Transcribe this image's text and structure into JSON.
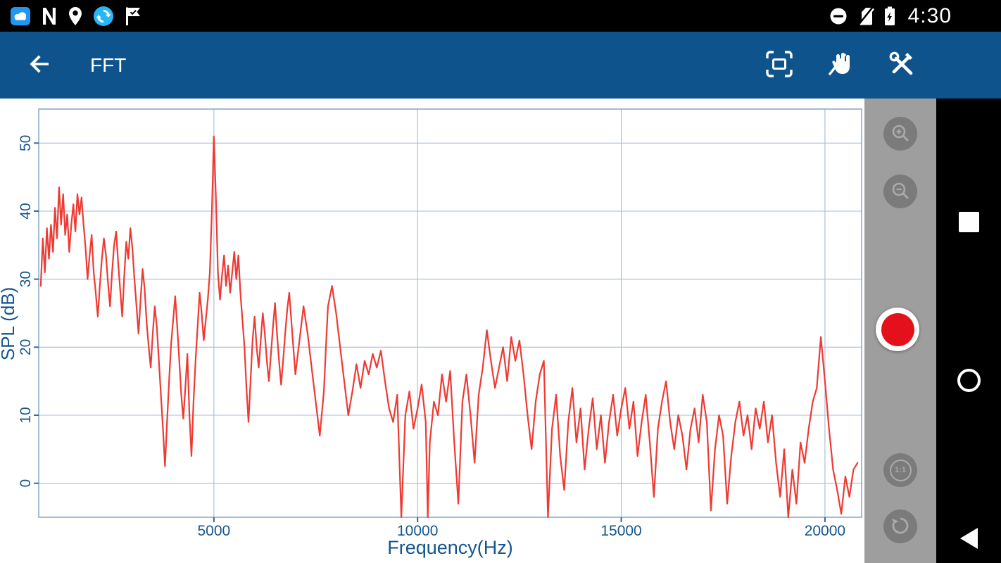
{
  "status_bar": {
    "time": "4:30",
    "left_icons": [
      "cloud-storage-app-icon",
      "n-app-icon",
      "location-pin-icon",
      "sync-app-icon",
      "check-flag-icon"
    ],
    "right_icons": [
      "do-not-disturb-icon",
      "no-sim-icon",
      "battery-charging-icon"
    ]
  },
  "toolbar": {
    "title": "FFT",
    "back_icon": "back-arrow-icon",
    "actions": [
      {
        "name": "fit-screen-button",
        "icon": "fit-screen-icon"
      },
      {
        "name": "pan-tool-button",
        "icon": "pan-hand-slash-icon"
      },
      {
        "name": "tools-button",
        "icon": "wrench-screwdriver-icon"
      }
    ],
    "bg_color": "#0e538c"
  },
  "side_toolbar": {
    "bg_color": "#9e9e9e",
    "button_bg_color": "#7b7b7b",
    "one_to_one_label": "1:1",
    "buttons": [
      "zoom-in-icon",
      "zoom-out-icon",
      "one-to-one-icon",
      "reset-zoom-icon"
    ],
    "record_button_color": "#e4101c"
  },
  "nav_bar": {
    "icons": [
      "recents-square-icon",
      "home-circle-icon",
      "back-triangle-icon"
    ]
  },
  "chart_data": {
    "type": "line",
    "title": "",
    "xlabel": "Frequency(Hz)",
    "ylabel": "SPL (dB)",
    "xlim": [
      700,
      20900
    ],
    "ylim": [
      -5,
      55
    ],
    "x_ticks": [
      5000,
      10000,
      15000,
      20000
    ],
    "y_ticks": [
      0,
      10,
      20,
      30,
      40,
      50
    ],
    "grid": true,
    "legend": false,
    "grid_color": "#a3bdd3",
    "frame_color": "#7aa0bf",
    "tick_color": "#35689a",
    "text_color": "#15568e",
    "line_color": "#ee3a33",
    "points": [
      [
        750,
        29
      ],
      [
        800,
        36
      ],
      [
        850,
        31
      ],
      [
        900,
        37.5
      ],
      [
        950,
        33
      ],
      [
        1000,
        38
      ],
      [
        1050,
        34
      ],
      [
        1100,
        40.5
      ],
      [
        1150,
        36
      ],
      [
        1200,
        43.5
      ],
      [
        1250,
        38
      ],
      [
        1300,
        42.5
      ],
      [
        1350,
        36.5
      ],
      [
        1400,
        39.5
      ],
      [
        1450,
        34
      ],
      [
        1500,
        38
      ],
      [
        1550,
        41
      ],
      [
        1600,
        37
      ],
      [
        1650,
        42.5
      ],
      [
        1700,
        39.5
      ],
      [
        1750,
        42
      ],
      [
        1800,
        38
      ],
      [
        1850,
        34.5
      ],
      [
        1900,
        30
      ],
      [
        1950,
        33.5
      ],
      [
        2000,
        36.5
      ],
      [
        2050,
        31
      ],
      [
        2100,
        28
      ],
      [
        2150,
        24.5
      ],
      [
        2200,
        29
      ],
      [
        2250,
        33
      ],
      [
        2300,
        36
      ],
      [
        2350,
        33.5
      ],
      [
        2400,
        29.5
      ],
      [
        2450,
        26
      ],
      [
        2500,
        31
      ],
      [
        2550,
        35
      ],
      [
        2600,
        37
      ],
      [
        2650,
        32.5
      ],
      [
        2700,
        28.5
      ],
      [
        2750,
        24.5
      ],
      [
        2800,
        30.5
      ],
      [
        2850,
        35.5
      ],
      [
        2900,
        33
      ],
      [
        2950,
        37.5
      ],
      [
        3000,
        34.5
      ],
      [
        3050,
        30
      ],
      [
        3100,
        26
      ],
      [
        3150,
        22
      ],
      [
        3200,
        27
      ],
      [
        3250,
        31.5
      ],
      [
        3300,
        28.5
      ],
      [
        3350,
        23.5
      ],
      [
        3400,
        20
      ],
      [
        3450,
        17
      ],
      [
        3500,
        22
      ],
      [
        3550,
        26
      ],
      [
        3600,
        23
      ],
      [
        3650,
        18
      ],
      [
        3700,
        13
      ],
      [
        3750,
        8
      ],
      [
        3800,
        2.5
      ],
      [
        3850,
        9
      ],
      [
        3900,
        15
      ],
      [
        3950,
        20.5
      ],
      [
        4000,
        24
      ],
      [
        4050,
        27.5
      ],
      [
        4100,
        23
      ],
      [
        4150,
        18
      ],
      [
        4200,
        13
      ],
      [
        4250,
        9.5
      ],
      [
        4300,
        14
      ],
      [
        4350,
        19
      ],
      [
        4400,
        10
      ],
      [
        4450,
        4
      ],
      [
        4500,
        12
      ],
      [
        4550,
        18
      ],
      [
        4600,
        23
      ],
      [
        4650,
        28
      ],
      [
        4700,
        25
      ],
      [
        4750,
        21
      ],
      [
        4800,
        24
      ],
      [
        4850,
        27
      ],
      [
        4900,
        31
      ],
      [
        4950,
        40
      ],
      [
        5000,
        51
      ],
      [
        5050,
        42
      ],
      [
        5100,
        31
      ],
      [
        5150,
        27
      ],
      [
        5200,
        30.5
      ],
      [
        5250,
        33.5
      ],
      [
        5300,
        29
      ],
      [
        5350,
        32
      ],
      [
        5400,
        28
      ],
      [
        5450,
        31
      ],
      [
        5500,
        34
      ],
      [
        5550,
        30
      ],
      [
        5600,
        33.5
      ],
      [
        5650,
        28
      ],
      [
        5700,
        24
      ],
      [
        5750,
        20
      ],
      [
        5800,
        14
      ],
      [
        5850,
        9
      ],
      [
        5900,
        15
      ],
      [
        5950,
        21
      ],
      [
        6000,
        24.5
      ],
      [
        6050,
        20
      ],
      [
        6100,
        17
      ],
      [
        6150,
        21
      ],
      [
        6200,
        25
      ],
      [
        6250,
        22
      ],
      [
        6300,
        18
      ],
      [
        6350,
        15
      ],
      [
        6400,
        19
      ],
      [
        6450,
        23
      ],
      [
        6500,
        26.5
      ],
      [
        6550,
        22
      ],
      [
        6600,
        18
      ],
      [
        6650,
        14.5
      ],
      [
        6700,
        18
      ],
      [
        6750,
        22
      ],
      [
        6800,
        25.5
      ],
      [
        6850,
        28
      ],
      [
        6900,
        24
      ],
      [
        6950,
        20
      ],
      [
        7000,
        16
      ],
      [
        7100,
        21
      ],
      [
        7200,
        26
      ],
      [
        7300,
        22
      ],
      [
        7400,
        17
      ],
      [
        7500,
        12
      ],
      [
        7600,
        7
      ],
      [
        7700,
        13.5
      ],
      [
        7750,
        20
      ],
      [
        7800,
        26
      ],
      [
        7900,
        29
      ],
      [
        8000,
        25
      ],
      [
        8100,
        20
      ],
      [
        8200,
        15
      ],
      [
        8300,
        10
      ],
      [
        8400,
        13.5
      ],
      [
        8500,
        17.5
      ],
      [
        8600,
        14
      ],
      [
        8700,
        18
      ],
      [
        8800,
        16
      ],
      [
        8900,
        19
      ],
      [
        9000,
        17
      ],
      [
        9100,
        19.5
      ],
      [
        9200,
        15
      ],
      [
        9300,
        11
      ],
      [
        9400,
        9
      ],
      [
        9500,
        13
      ],
      [
        9600,
        -5
      ],
      [
        9700,
        10
      ],
      [
        9800,
        13.5
      ],
      [
        9900,
        8
      ],
      [
        10000,
        11
      ],
      [
        10100,
        14.5
      ],
      [
        10200,
        9
      ],
      [
        10250,
        -5
      ],
      [
        10300,
        6
      ],
      [
        10400,
        12
      ],
      [
        10500,
        10
      ],
      [
        10600,
        16
      ],
      [
        10700,
        12
      ],
      [
        10800,
        16.5
      ],
      [
        10900,
        6
      ],
      [
        11000,
        -3
      ],
      [
        11100,
        12
      ],
      [
        11200,
        16
      ],
      [
        11300,
        10
      ],
      [
        11400,
        3
      ],
      [
        11500,
        13
      ],
      [
        11600,
        17
      ],
      [
        11700,
        22.5
      ],
      [
        11800,
        18
      ],
      [
        11900,
        14
      ],
      [
        12000,
        17
      ],
      [
        12100,
        20
      ],
      [
        12200,
        15
      ],
      [
        12300,
        21.5
      ],
      [
        12400,
        18
      ],
      [
        12500,
        21
      ],
      [
        12600,
        16
      ],
      [
        12700,
        10
      ],
      [
        12800,
        5
      ],
      [
        12900,
        12
      ],
      [
        13000,
        16
      ],
      [
        13100,
        18
      ],
      [
        13200,
        -5
      ],
      [
        13300,
        8
      ],
      [
        13400,
        13
      ],
      [
        13500,
        4
      ],
      [
        13600,
        -1
      ],
      [
        13700,
        9
      ],
      [
        13800,
        14
      ],
      [
        13900,
        6
      ],
      [
        14000,
        11
      ],
      [
        14100,
        2
      ],
      [
        14200,
        8
      ],
      [
        14300,
        12.5
      ],
      [
        14400,
        5
      ],
      [
        14500,
        10
      ],
      [
        14600,
        3
      ],
      [
        14700,
        9
      ],
      [
        14800,
        13
      ],
      [
        14900,
        7
      ],
      [
        15000,
        11
      ],
      [
        15100,
        14
      ],
      [
        15200,
        8
      ],
      [
        15300,
        12
      ],
      [
        15400,
        4
      ],
      [
        15500,
        9
      ],
      [
        15600,
        13
      ],
      [
        15700,
        6
      ],
      [
        15800,
        -2
      ],
      [
        15900,
        8
      ],
      [
        16000,
        12
      ],
      [
        16100,
        15
      ],
      [
        16200,
        9
      ],
      [
        16300,
        5
      ],
      [
        16400,
        10
      ],
      [
        16500,
        7
      ],
      [
        16600,
        2
      ],
      [
        16700,
        8
      ],
      [
        16800,
        11
      ],
      [
        16900,
        6
      ],
      [
        17000,
        13
      ],
      [
        17100,
        9
      ],
      [
        17200,
        -4
      ],
      [
        17300,
        5
      ],
      [
        17400,
        10
      ],
      [
        17500,
        7
      ],
      [
        17600,
        -3
      ],
      [
        17700,
        4
      ],
      [
        17800,
        9
      ],
      [
        17900,
        12
      ],
      [
        18000,
        7
      ],
      [
        18100,
        10
      ],
      [
        18200,
        5
      ],
      [
        18300,
        11
      ],
      [
        18400,
        8
      ],
      [
        18500,
        12
      ],
      [
        18600,
        6
      ],
      [
        18700,
        10
      ],
      [
        18800,
        3
      ],
      [
        18900,
        -2
      ],
      [
        19000,
        5
      ],
      [
        19100,
        -5
      ],
      [
        19200,
        2
      ],
      [
        19300,
        -3
      ],
      [
        19400,
        6
      ],
      [
        19500,
        3
      ],
      [
        19600,
        8
      ],
      [
        19700,
        12
      ],
      [
        19800,
        14
      ],
      [
        19900,
        21.5
      ],
      [
        20000,
        15
      ],
      [
        20100,
        8
      ],
      [
        20200,
        2
      ],
      [
        20300,
        -1
      ],
      [
        20400,
        -4.5
      ],
      [
        20500,
        1
      ],
      [
        20600,
        -2
      ],
      [
        20700,
        2
      ],
      [
        20800,
        3
      ]
    ]
  }
}
